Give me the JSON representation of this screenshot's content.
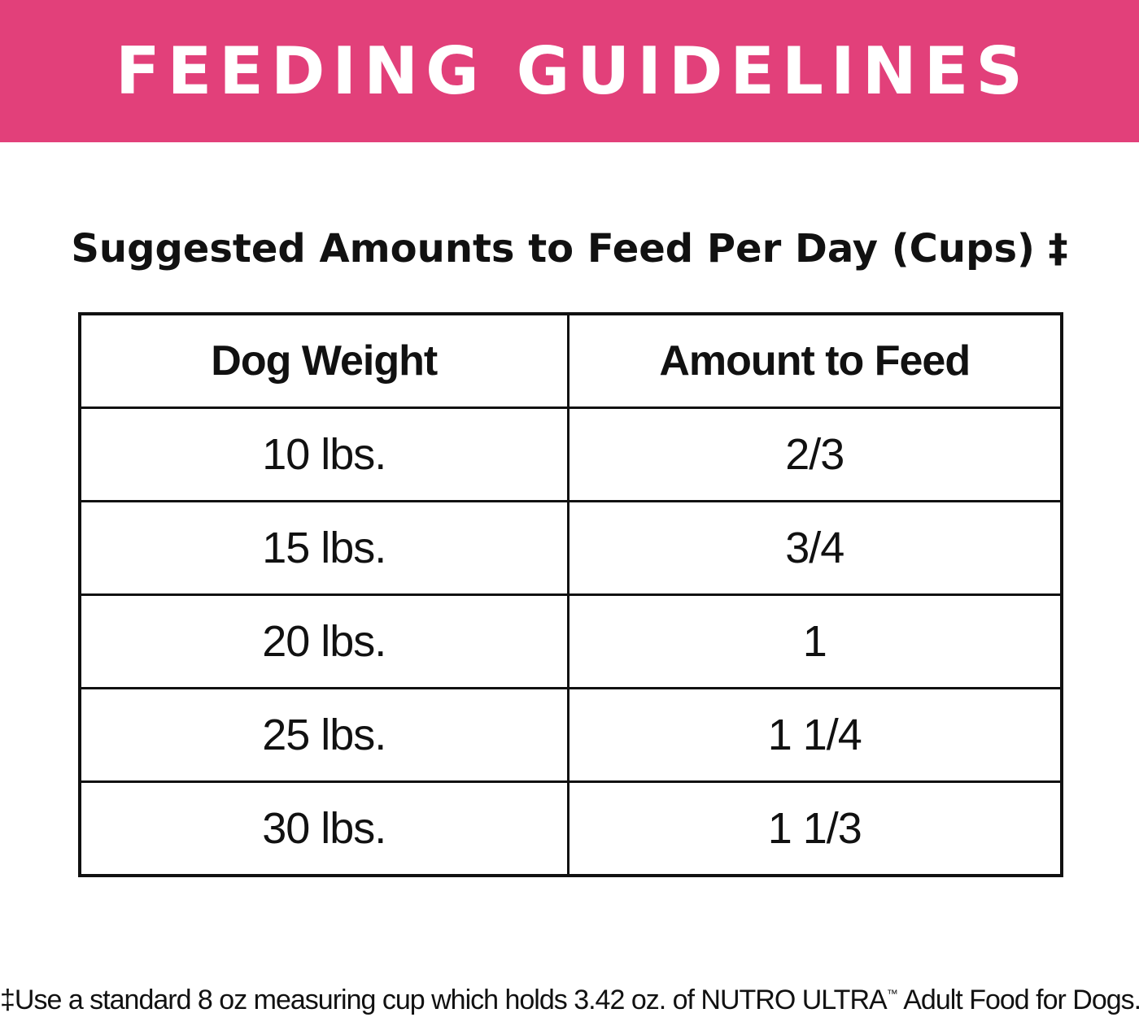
{
  "header": {
    "title": "FEEDING GUIDELINES",
    "background_color": "#e2407a",
    "text_color": "#ffffff"
  },
  "subtitle": "Suggested Amounts to Feed Per Day (Cups) ‡",
  "table": {
    "columns": [
      "Dog Weight",
      "Amount to Feed"
    ],
    "rows": [
      [
        "10 lbs.",
        "2/3"
      ],
      [
        "15 lbs.",
        "3/4"
      ],
      [
        "20 lbs.",
        "1"
      ],
      [
        "25 lbs.",
        "1 1/4"
      ],
      [
        "30 lbs.",
        "1 1/3"
      ]
    ]
  },
  "footnote": {
    "before": "‡Use a standard 8 oz measuring cup which holds 3.42 oz. of NUTRO ULTRA",
    "trademark": "™",
    "after": " Adult Food for Dogs."
  }
}
